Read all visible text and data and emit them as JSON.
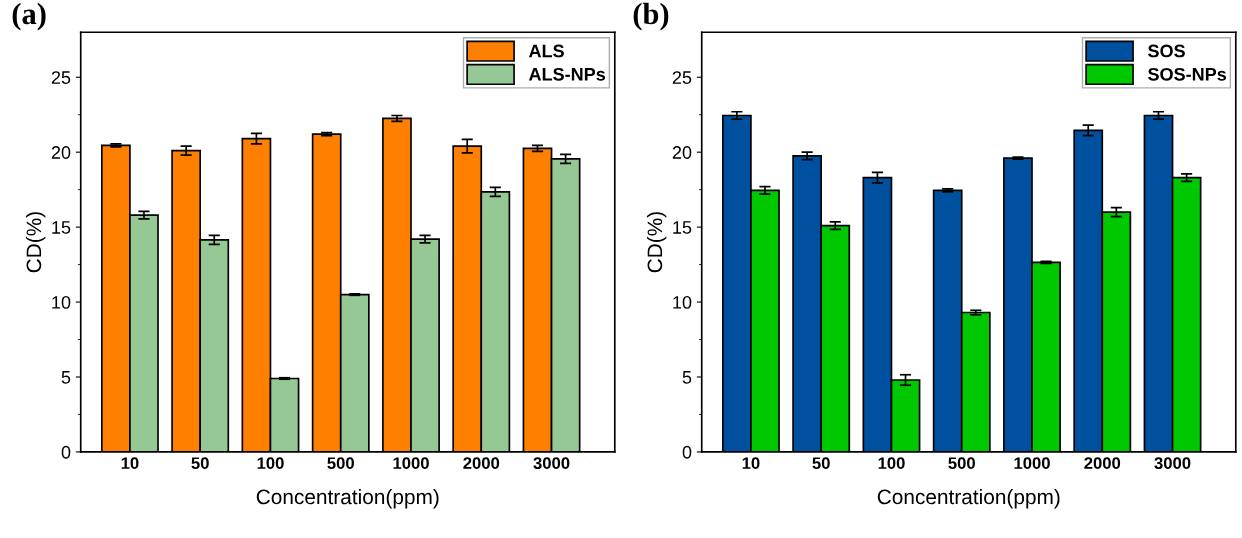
{
  "chart_data": [
    {
      "type": "bar",
      "title": "(a)",
      "xlabel": "Concentration(ppm)",
      "ylabel": "CD(%)",
      "categories": [
        "10",
        "50",
        "100",
        "500",
        "1000",
        "2000",
        "3000"
      ],
      "ylim": [
        0,
        28
      ],
      "yticks": [
        0,
        5,
        10,
        15,
        20,
        25
      ],
      "legend": "top right",
      "grid": false,
      "series": [
        {
          "name": "ALS",
          "color": "#ff7f00",
          "values": [
            20.45,
            20.1,
            20.9,
            21.2,
            22.25,
            20.4,
            20.25
          ],
          "errors": [
            0.1,
            0.3,
            0.35,
            0.1,
            0.2,
            0.45,
            0.2
          ]
        },
        {
          "name": "ALS-NPs",
          "color": "#96c896",
          "values": [
            15.8,
            14.15,
            4.9,
            10.5,
            14.2,
            17.35,
            19.55
          ],
          "errors": [
            0.25,
            0.3,
            0.05,
            0.05,
            0.25,
            0.3,
            0.3
          ]
        }
      ]
    },
    {
      "type": "bar",
      "title": "(b)",
      "xlabel": "Concentration(ppm)",
      "ylabel": "CD(%)",
      "categories": [
        "10",
        "50",
        "100",
        "500",
        "1000",
        "2000",
        "3000"
      ],
      "ylim": [
        0,
        28
      ],
      "yticks": [
        0,
        5,
        10,
        15,
        20,
        25
      ],
      "legend": "top right",
      "grid": false,
      "series": [
        {
          "name": "SOS",
          "color": "#0050a0",
          "values": [
            22.45,
            19.75,
            18.3,
            17.45,
            19.6,
            21.45,
            22.45
          ],
          "errors": [
            0.25,
            0.25,
            0.35,
            0.1,
            0.07,
            0.35,
            0.25
          ]
        },
        {
          "name": "SOS-NPs",
          "color": "#00c800",
          "values": [
            17.45,
            15.1,
            4.8,
            9.3,
            12.65,
            16.0,
            18.3
          ],
          "errors": [
            0.25,
            0.25,
            0.35,
            0.15,
            0.07,
            0.3,
            0.25
          ]
        }
      ]
    }
  ]
}
